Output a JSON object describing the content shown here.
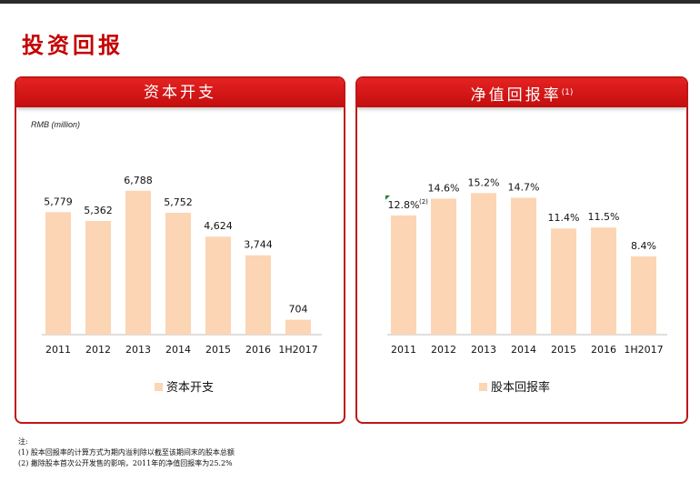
{
  "page": {
    "title": "投资回报"
  },
  "left_panel": {
    "title": "资本开支",
    "unit": "RMB (million)",
    "legend": "资本开支"
  },
  "right_panel": {
    "title": "净值回报率",
    "title_note": "(1)",
    "legend": "股本回报率"
  },
  "colors": {
    "bar": "#fcd5b4",
    "accent": "#c40000",
    "baseline": "#bfbfbf"
  },
  "chart_data": [
    {
      "type": "bar",
      "title": "资本开支",
      "ylabel": "RMB (million)",
      "categories": [
        "2011",
        "2012",
        "2013",
        "2014",
        "2015",
        "2016",
        "1H2017"
      ],
      "series": [
        {
          "name": "资本开支",
          "values": [
            5779,
            5362,
            6788,
            5752,
            4624,
            3744,
            704
          ]
        }
      ],
      "value_labels": [
        "5,779",
        "5,362",
        "6,788",
        "5,752",
        "4,624",
        "3,744",
        "704"
      ],
      "ylim": [
        0,
        8800
      ]
    },
    {
      "type": "bar",
      "title": "净值回报率",
      "categories": [
        "2011",
        "2012",
        "2013",
        "2014",
        "2015",
        "2016",
        "1H2017"
      ],
      "series": [
        {
          "name": "股本回报率",
          "values": [
            12.8,
            14.6,
            15.2,
            14.7,
            11.4,
            11.5,
            8.4
          ]
        }
      ],
      "value_labels": [
        "12.8%",
        "14.6%",
        "15.2%",
        "14.7%",
        "11.4%",
        "11.5%",
        "8.4%"
      ],
      "label_notes": [
        "(2)",
        "",
        "",
        "",
        "",
        "",
        ""
      ],
      "ylim": [
        0,
        19.4
      ]
    }
  ],
  "footnotes": {
    "heading": "注:",
    "note1": "(1) 股本回报率的计算方式为期内溢利除以截至该期间末的股本总额",
    "note2": "(2) 撇除股本首次公开发售的影响，2011年的净值回报率为25.2%"
  }
}
